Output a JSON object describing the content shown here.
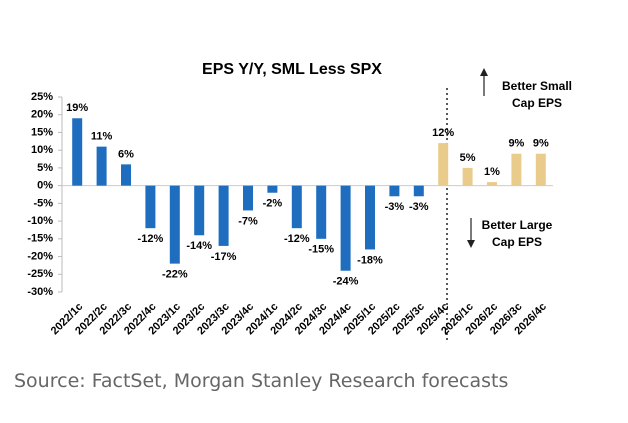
{
  "chart_data": {
    "type": "bar",
    "title": "EPS Y/Y, SML Less SPX",
    "categories": [
      "2022/1c",
      "2022/2c",
      "2022/3c",
      "2022/4c",
      "2023/1c",
      "2023/2c",
      "2023/3c",
      "2023/4c",
      "2024/1c",
      "2024/2c",
      "2024/3c",
      "2024/4c",
      "2025/1c",
      "2025/2c",
      "2025/3c",
      "2025/4c",
      "2026/1c",
      "2026/2c",
      "2026/3c",
      "2026/4c"
    ],
    "values": [
      19,
      11,
      6,
      -12,
      -22,
      -14,
      -17,
      -7,
      -2,
      -12,
      -15,
      -24,
      -18,
      -3,
      -3,
      12,
      5,
      1,
      9,
      9
    ],
    "value_labels": [
      "19%",
      "11%",
      "6%",
      "-12%",
      "-22%",
      "-14%",
      "-17%",
      "-7%",
      "-2%",
      "-12%",
      "-15%",
      "-24%",
      "-18%",
      "-3%",
      "-3%",
      "12%",
      "5%",
      "1%",
      "9%",
      "9%"
    ],
    "colors": [
      "#1f6dbf",
      "#1f6dbf",
      "#1f6dbf",
      "#1f6dbf",
      "#1f6dbf",
      "#1f6dbf",
      "#1f6dbf",
      "#1f6dbf",
      "#1f6dbf",
      "#1f6dbf",
      "#1f6dbf",
      "#1f6dbf",
      "#1f6dbf",
      "#1f6dbf",
      "#1f6dbf",
      "#e9cc8c",
      "#e9cc8c",
      "#e9cc8c",
      "#e9cc8c",
      "#e9cc8c"
    ],
    "ylim": [
      -30,
      25
    ],
    "yticks": [
      {
        "value": -30,
        "label": "-30%"
      },
      {
        "value": -25,
        "label": "-25%"
      },
      {
        "value": -20,
        "label": "-20%"
      },
      {
        "value": -15,
        "label": "-15%"
      },
      {
        "value": -10,
        "label": "-10%"
      },
      {
        "value": -5,
        "label": "-5%"
      },
      {
        "value": 0,
        "label": "0%"
      },
      {
        "value": 5,
        "label": "5%"
      },
      {
        "value": 10,
        "label": "10%"
      },
      {
        "value": 15,
        "label": "15%"
      },
      {
        "value": 20,
        "label": "20%"
      },
      {
        "value": 25,
        "label": "25%"
      }
    ],
    "grid": false,
    "annotations": [
      {
        "lines": [
          "Better Small",
          "Cap EPS"
        ]
      },
      {
        "lines": [
          "Better Large",
          "Cap EPS"
        ]
      }
    ],
    "source": "Source: FactSet, Morgan Stanley Research forecasts"
  }
}
